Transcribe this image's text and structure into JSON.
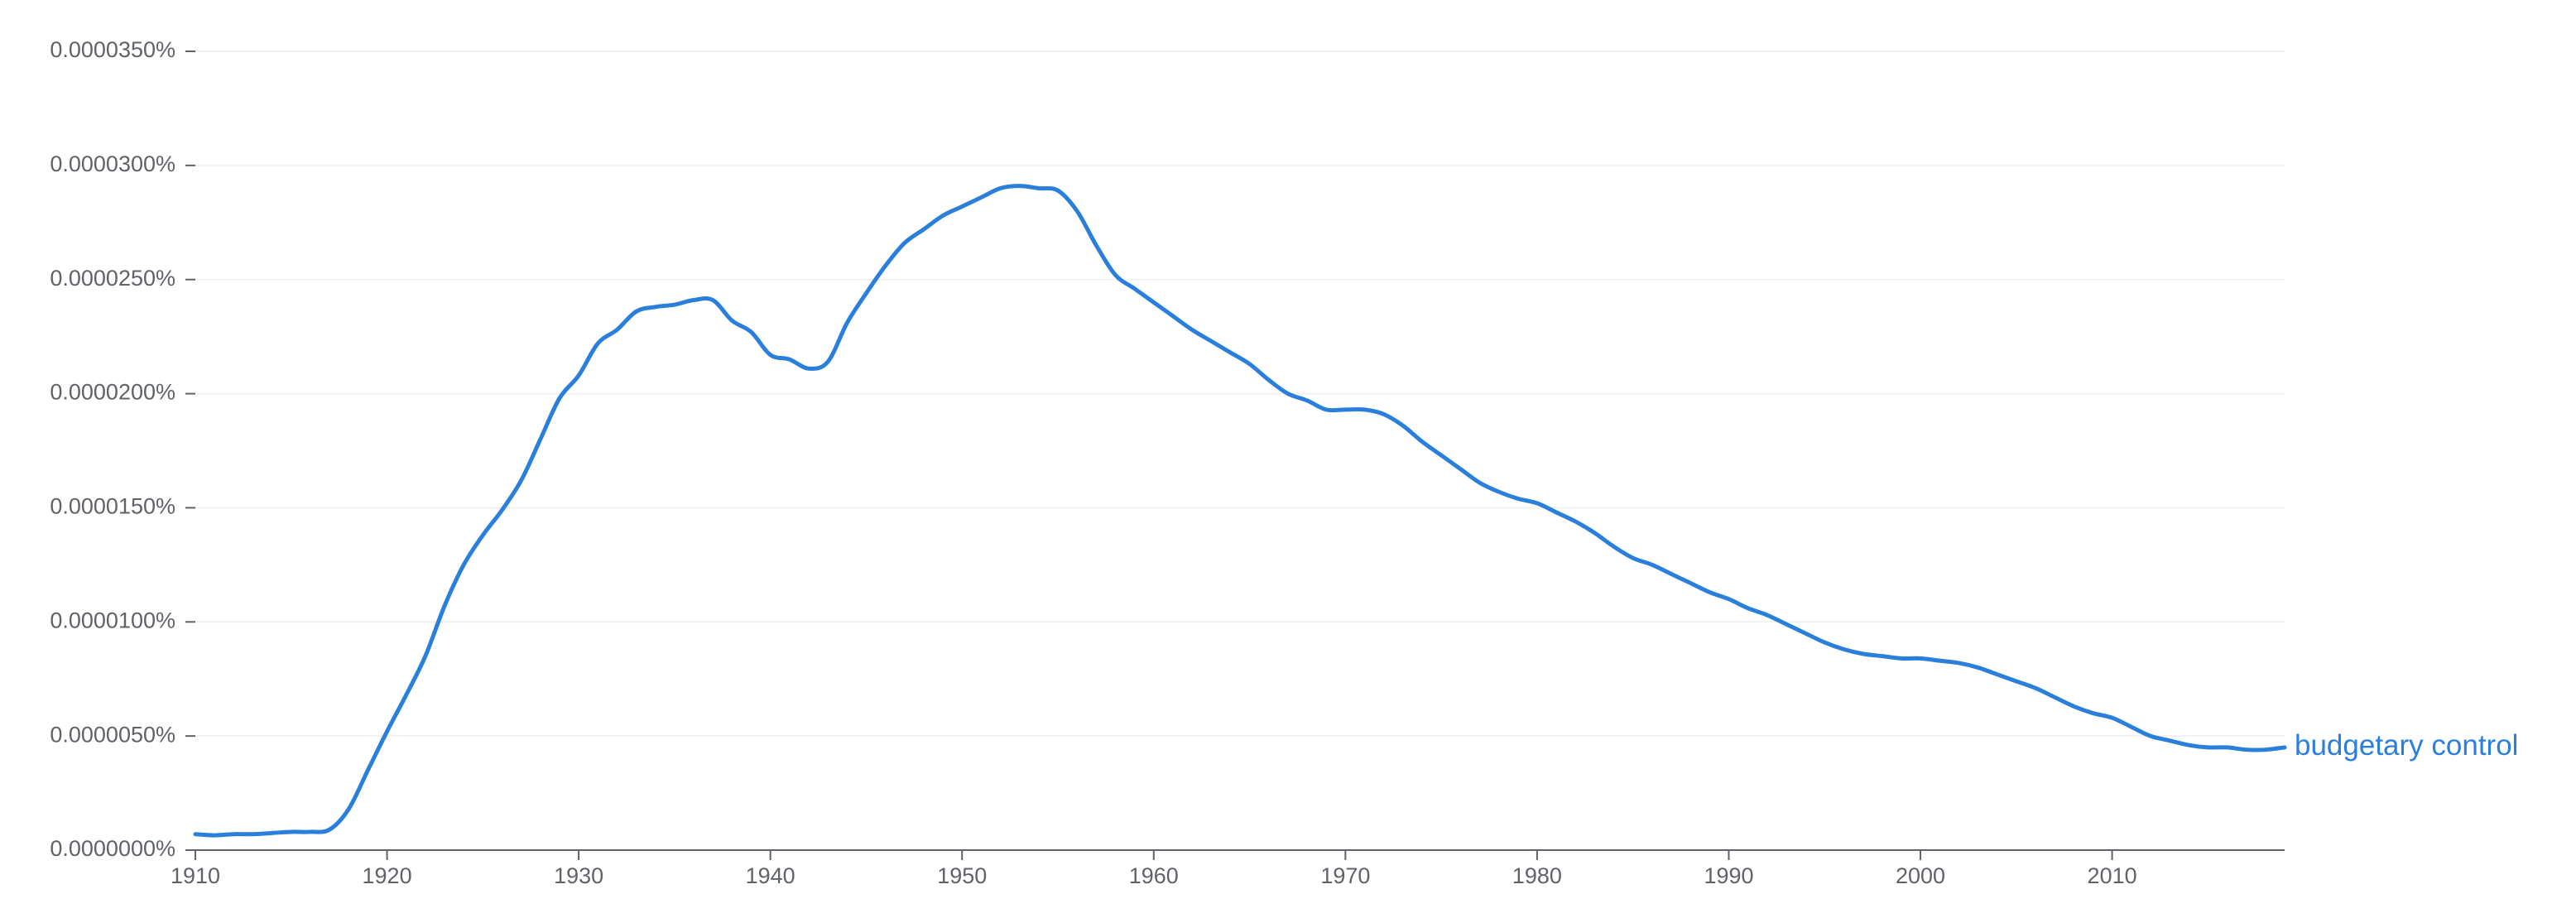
{
  "chart_data": {
    "type": "line",
    "title": "",
    "xlabel": "",
    "ylabel": "",
    "xlim": [
      1910,
      2019
    ],
    "ylim": [
      0,
      3.5e-05
    ],
    "grid": true,
    "legend": "end-of-line label",
    "x_ticks": [
      1910,
      1920,
      1930,
      1940,
      1950,
      1960,
      1970,
      1980,
      1990,
      2000,
      2010
    ],
    "x_tick_labels": [
      "1910",
      "1920",
      "1930",
      "1940",
      "1950",
      "1960",
      "1970",
      "1980",
      "1990",
      "2000",
      "2010"
    ],
    "y_ticks": [
      0,
      5e-06,
      1e-05,
      1.5e-05,
      2e-05,
      2.5e-05,
      3e-05,
      3.5e-05
    ],
    "y_tick_labels": [
      "0.0000000%",
      "0.0000050%",
      "0.0000100%",
      "0.0000150%",
      "0.0000200%",
      "0.0000250%",
      "0.0000300%",
      "0.0000350%"
    ],
    "series": [
      {
        "name": "budgetary control",
        "color": "#2a7fdc",
        "x": [
          1910,
          1911,
          1912,
          1913,
          1914,
          1915,
          1916,
          1917,
          1918,
          1919,
          1920,
          1921,
          1922,
          1923,
          1924,
          1925,
          1926,
          1927,
          1928,
          1929,
          1930,
          1931,
          1932,
          1933,
          1934,
          1935,
          1936,
          1937,
          1938,
          1939,
          1940,
          1941,
          1942,
          1943,
          1944,
          1945,
          1946,
          1947,
          1948,
          1949,
          1950,
          1951,
          1952,
          1953,
          1954,
          1955,
          1956,
          1957,
          1958,
          1959,
          1960,
          1961,
          1962,
          1963,
          1964,
          1965,
          1966,
          1967,
          1968,
          1969,
          1970,
          1971,
          1972,
          1973,
          1974,
          1975,
          1976,
          1977,
          1978,
          1979,
          1980,
          1981,
          1982,
          1983,
          1984,
          1985,
          1986,
          1987,
          1988,
          1989,
          1990,
          1991,
          1992,
          1993,
          1994,
          1995,
          1996,
          1997,
          1998,
          1999,
          2000,
          2001,
          2002,
          2003,
          2004,
          2005,
          2006,
          2007,
          2008,
          2009,
          2010,
          2011,
          2012,
          2013,
          2014,
          2015,
          2016,
          2017,
          2018,
          2019
        ],
        "values": [
          7e-07,
          6.5e-07,
          7e-07,
          7e-07,
          7.5e-07,
          8e-07,
          8e-07,
          9e-07,
          1.8e-06,
          3.5e-06,
          5.2e-06,
          6.8e-06,
          8.5e-06,
          1.07e-05,
          1.25e-05,
          1.38e-05,
          1.49e-05,
          1.62e-05,
          1.8e-05,
          1.98e-05,
          2.08e-05,
          2.22e-05,
          2.28e-05,
          2.36e-05,
          2.38e-05,
          2.39e-05,
          2.41e-05,
          2.41e-05,
          2.32e-05,
          2.27e-05,
          2.17e-05,
          2.15e-05,
          2.11e-05,
          2.14e-05,
          2.31e-05,
          2.44e-05,
          2.56e-05,
          2.66e-05,
          2.72e-05,
          2.78e-05,
          2.82e-05,
          2.86e-05,
          2.9e-05,
          2.91e-05,
          2.9e-05,
          2.89e-05,
          2.8e-05,
          2.65e-05,
          2.52e-05,
          2.46e-05,
          2.4e-05,
          2.34e-05,
          2.28e-05,
          2.23e-05,
          2.18e-05,
          2.13e-05,
          2.06e-05,
          2e-05,
          1.97e-05,
          1.93e-05,
          1.93e-05,
          1.93e-05,
          1.91e-05,
          1.86e-05,
          1.79e-05,
          1.73e-05,
          1.67e-05,
          1.61e-05,
          1.57e-05,
          1.54e-05,
          1.52e-05,
          1.48e-05,
          1.44e-05,
          1.39e-05,
          1.33e-05,
          1.28e-05,
          1.25e-05,
          1.21e-05,
          1.17e-05,
          1.13e-05,
          1.1e-05,
          1.06e-05,
          1.03e-05,
          9.9e-06,
          9.5e-06,
          9.1e-06,
          8.8e-06,
          8.6e-06,
          8.5e-06,
          8.4e-06,
          8.4e-06,
          8.3e-06,
          8.2e-06,
          8e-06,
          7.7e-06,
          7.4e-06,
          7.1e-06,
          6.7e-06,
          6.3e-06,
          6e-06,
          5.8e-06,
          5.4e-06,
          5e-06,
          4.8e-06,
          4.6e-06,
          4.5e-06,
          4.5e-06,
          4.4e-06,
          4.4e-06,
          4.5e-06
        ]
      }
    ]
  }
}
